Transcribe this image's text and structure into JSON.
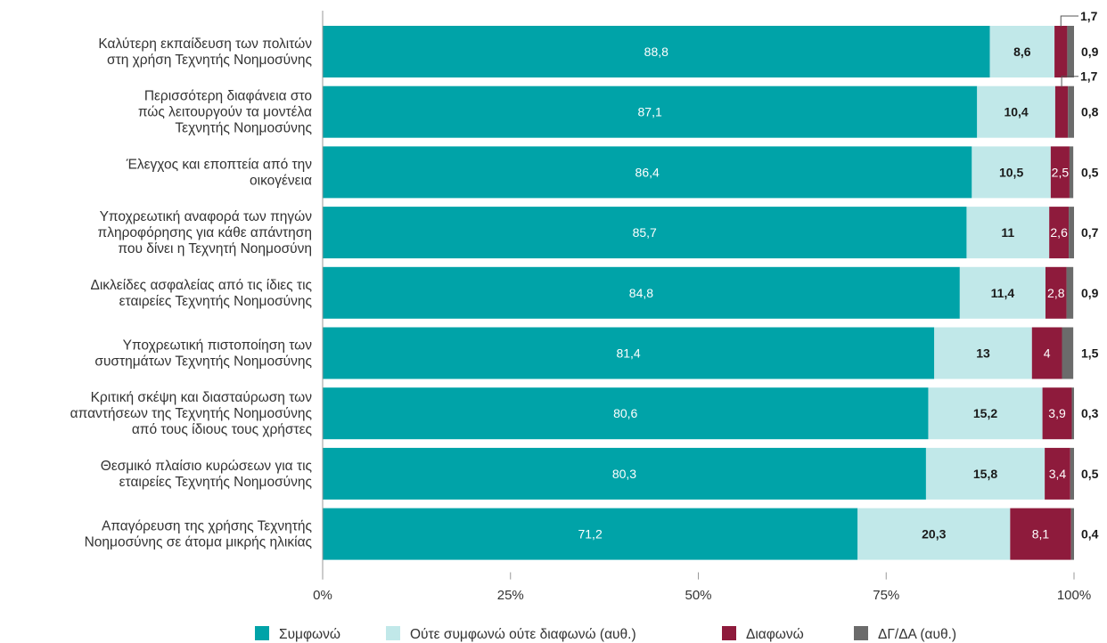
{
  "chart_data": {
    "type": "bar",
    "orientation": "horizontal",
    "stacked": true,
    "categories": [
      "Καλύτερη εκπαίδευση των πολιτών στη χρήση Τεχνητής Νοημοσύνης",
      "Περισσότερη διαφάνεια στο πώς λειτουργούν τα μοντέλα Τεχνητής Νοημοσύνης",
      "Έλεγχος και εποπτεία από την οικογένεια",
      "Υποχρεωτική αναφορά των πηγών πληροφόρησης για κάθε απάντηση που δίνει η Τεχνητή Νοημοσύνη",
      "Δικλείδες ασφαλείας από τις ίδιες τις εταιρείες Τεχνητής Νοημοσύνης",
      "Υποχρεωτική πιστοποίηση των συστημάτων Τεχνητής Νοημοσύνης",
      "Κριτική σκέψη και διασταύρωση των απαντήσεων της Τεχνητής Νοημοσύνης από τους ίδιους τους χρήστες",
      "Θεσμικό πλαίσιο κυρώσεων για τις εταιρείες Τεχνητής Νοημοσύνης",
      "Απαγόρευση της χρήσης Τεχνητής Νοημοσύνης σε άτομα μικρής ηλικίας"
    ],
    "category_lines": [
      [
        "Καλύτερη εκπαίδευση των πολιτών",
        "στη χρήση Τεχνητής Νοημοσύνης"
      ],
      [
        "Περισσότερη διαφάνεια στο",
        "πώς λειτουργούν τα μοντέλα",
        "Τεχνητής Νοημοσύνης"
      ],
      [
        "Έλεγχος και εποπτεία από την",
        "οικογένεια"
      ],
      [
        "Υποχρεωτική αναφορά των πηγών",
        "πληροφόρησης για κάθε απάντηση",
        "που δίνει η Τεχνητή Νοημοσύνη"
      ],
      [
        "Δικλείδες ασφαλείας από τις ίδιες τις",
        "εταιρείες Τεχνητής Νοημοσύνης"
      ],
      [
        "Υποχρεωτική πιστοποίηση των",
        "συστημάτων Τεχνητής Νοημοσύνης"
      ],
      [
        "Κριτική σκέψη και διασταύρωση των",
        "απαντήσεων της Τεχνητής Νοημοσύνης",
        "από τους ίδιους τους χρήστες"
      ],
      [
        "Θεσμικό πλαίσιο κυρώσεων για τις",
        "εταιρείες Τεχνητής Νοημοσύνης"
      ],
      [
        "Απαγόρευση της χρήσης Τεχνητής",
        "Νοημοσύνης σε άτομα μικρής ηλικίας"
      ]
    ],
    "series": [
      {
        "name": "Συμφωνώ",
        "color": "#00a3a8",
        "values": [
          88.8,
          87.1,
          86.4,
          85.7,
          84.8,
          81.4,
          80.6,
          80.3,
          71.2
        ],
        "labels": [
          "88,8",
          "87,1",
          "86,4",
          "85,7",
          "84,8",
          "81,4",
          "80,6",
          "80,3",
          "71,2"
        ]
      },
      {
        "name": "Ούτε συμφωνώ ούτε διαφωνώ (αυθ.)",
        "color": "#c1e8e9",
        "values": [
          8.6,
          10.4,
          10.5,
          11,
          11.4,
          13,
          15.2,
          15.8,
          20.3
        ],
        "labels": [
          "8,6",
          "10,4",
          "10,5",
          "11",
          "11,4",
          "13",
          "15,2",
          "15,8",
          "20,3"
        ]
      },
      {
        "name": "Διαφωνώ",
        "color": "#8e1b3c",
        "values": [
          1.7,
          1.7,
          2.5,
          2.6,
          2.8,
          4,
          3.9,
          3.4,
          8.1
        ],
        "labels": [
          "1,7",
          "1,7",
          "2,5",
          "2,6",
          "2,8",
          "4",
          "3,9",
          "3,4",
          "8,1"
        ]
      },
      {
        "name": "ΔΓ/ΔΑ (αυθ.)",
        "color": "#6b6b6b",
        "values": [
          0.9,
          0.8,
          0.5,
          0.7,
          0.9,
          1.5,
          0.3,
          0.5,
          0.4
        ],
        "labels": [
          "0,9",
          "0,8",
          "0,5",
          "0,7",
          "0,9",
          "1,5",
          "0,3",
          "0,5",
          "0,4"
        ]
      }
    ],
    "xlim": [
      0,
      100
    ],
    "x_ticks": [
      0,
      25,
      50,
      75,
      100
    ],
    "x_tick_labels": [
      "0%",
      "25%",
      "50%",
      "75%",
      "100%"
    ],
    "grid": false,
    "legend_position": "bottom"
  }
}
